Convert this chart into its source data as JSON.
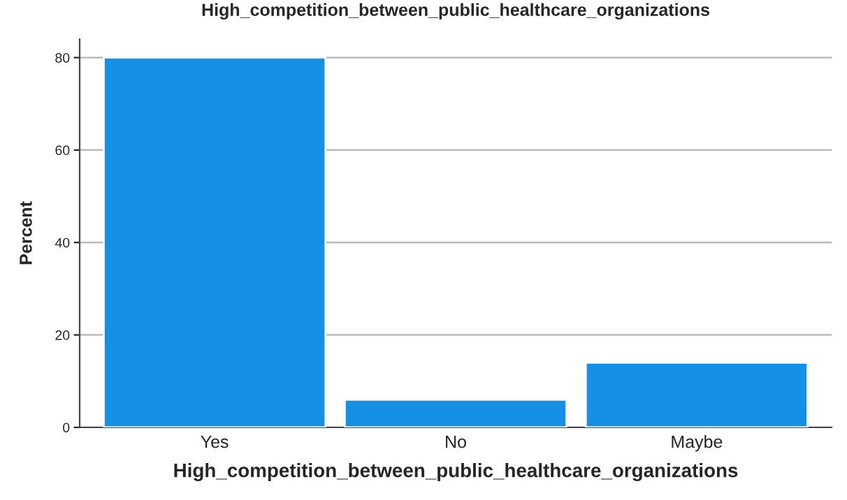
{
  "chart_data": {
    "type": "bar",
    "title": "High_competition_between_public_healthcare_organizations",
    "xlabel": "High_competition_between_public_healthcare_organizations",
    "ylabel": "Percent",
    "categories": [
      "Yes",
      "No",
      "Maybe"
    ],
    "values": [
      80,
      6,
      14
    ],
    "color": "#1690e6",
    "ylim": [
      0,
      84
    ],
    "yticks": [
      0,
      20,
      40,
      60,
      80
    ],
    "grid": "y"
  }
}
